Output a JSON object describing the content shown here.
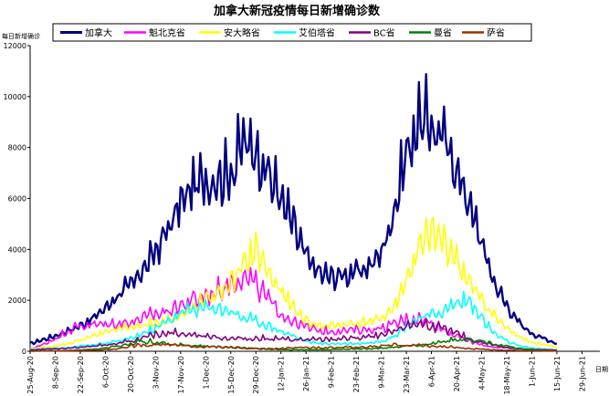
{
  "chart_data": {
    "type": "line",
    "title": "加拿大新冠疫情每日新增确诊数",
    "ylabel": "每日新增确诊",
    "xlabel": "日期",
    "ylim": [
      0,
      12000
    ],
    "y_ticks": [
      "0",
      "2000",
      "4000",
      "6000",
      "8000",
      "10000",
      "12000"
    ],
    "x_ticks": [
      "25-Aug-20",
      "8-Sep-20",
      "22-Sep-20",
      "6-Oct-20",
      "20-Oct-20",
      "3-Nov-20",
      "17-Nov-20",
      "1-Dec-20",
      "15-Dec-20",
      "29-Dec-20",
      "12-Jan-21",
      "26-Jan-21",
      "9-Feb-21",
      "23-Feb-21",
      "9-Mar-21",
      "23-Mar-21",
      "6-Apr-21",
      "20-Apr-21",
      "4-May-21",
      "18-May-21",
      "1-Jun-21",
      "15-Jun-21",
      "29-Jun-21"
    ],
    "x_start": "2020-08-25",
    "x_end": "2021-07-09",
    "grid": false,
    "legend_position": "top",
    "series": [
      {
        "name": "加拿大",
        "color": "#000080",
        "noise": 0.09,
        "values": [
          300,
          450,
          600,
          800,
          1000,
          1300,
          1700,
          2200,
          2600,
          3200,
          3900,
          4800,
          5800,
          6500,
          6700,
          6800,
          7000,
          8200,
          7900,
          7000,
          6000,
          4900,
          3700,
          3100,
          2900,
          3000,
          3100,
          3300,
          3900,
          5500,
          7800,
          9000,
          8900,
          8300,
          7200,
          5800,
          4300,
          2700,
          1800,
          1100,
          700,
          500,
          300
        ]
      },
      {
        "name": "魁北克省",
        "color": "#ff00ff",
        "noise": 0.14,
        "values": [
          100,
          250,
          500,
          800,
          1000,
          1050,
          1050,
          1100,
          1150,
          1300,
          1450,
          1600,
          1800,
          2000,
          2200,
          2400,
          2700,
          3000,
          2600,
          2000,
          1500,
          1150,
          950,
          800,
          800,
          800,
          850,
          850,
          900,
          1050,
          1250,
          1300,
          1100,
          850,
          600,
          400,
          250,
          170,
          130,
          100,
          80,
          70,
          60
        ]
      },
      {
        "name": "安大略省",
        "color": "#ffff00",
        "noise": 0.1,
        "values": [
          100,
          150,
          200,
          300,
          450,
          600,
          750,
          850,
          950,
          1050,
          1100,
          1250,
          1400,
          1700,
          2000,
          2300,
          2700,
          3300,
          4000,
          3100,
          2300,
          1700,
          1200,
          1000,
          1000,
          1050,
          1100,
          1150,
          1300,
          1700,
          2800,
          4000,
          4600,
          4300,
          3600,
          2700,
          2000,
          1400,
          900,
          600,
          350,
          250,
          150
        ]
      },
      {
        "name": "艾伯塔省",
        "color": "#00ffff",
        "noise": 0.12,
        "values": [
          80,
          100,
          120,
          150,
          200,
          250,
          300,
          400,
          500,
          700,
          900,
          1200,
          1500,
          1650,
          1700,
          1700,
          1600,
          1300,
          1200,
          1000,
          800,
          600,
          400,
          300,
          300,
          300,
          300,
          330,
          400,
          600,
          1000,
          1300,
          1400,
          1600,
          1900,
          2000,
          1300,
          700,
          400,
          200,
          130,
          80,
          50
        ]
      },
      {
        "name": "BC省",
        "color": "#800080",
        "noise": 0.15,
        "values": [
          50,
          80,
          100,
          120,
          150,
          200,
          250,
          300,
          400,
          500,
          650,
          750,
          700,
          650,
          600,
          550,
          500,
          500,
          500,
          500,
          480,
          450,
          450,
          450,
          470,
          500,
          520,
          560,
          600,
          750,
          1000,
          1100,
          1000,
          850,
          700,
          500,
          350,
          250,
          150,
          100,
          70,
          60,
          50
        ]
      },
      {
        "name": "曼省",
        "color": "#008000",
        "noise": 0.2,
        "values": [
          10,
          15,
          20,
          30,
          50,
          80,
          130,
          200,
          300,
          400,
          350,
          300,
          250,
          220,
          200,
          170,
          150,
          130,
          100,
          80,
          70,
          60,
          60,
          60,
          70,
          80,
          100,
          100,
          120,
          150,
          200,
          250,
          300,
          400,
          450,
          500,
          400,
          300,
          200,
          100,
          60,
          40,
          30
        ]
      },
      {
        "name": "萨省",
        "color": "#993300",
        "noise": 0.22,
        "values": [
          5,
          10,
          15,
          20,
          30,
          40,
          60,
          100,
          200,
          250,
          270,
          250,
          220,
          200,
          180,
          170,
          150,
          130,
          110,
          100,
          110,
          130,
          140,
          150,
          150,
          150,
          160,
          180,
          200,
          250,
          250,
          230,
          200,
          180,
          150,
          100,
          80,
          60,
          40,
          30,
          25,
          20,
          15
        ]
      }
    ]
  }
}
